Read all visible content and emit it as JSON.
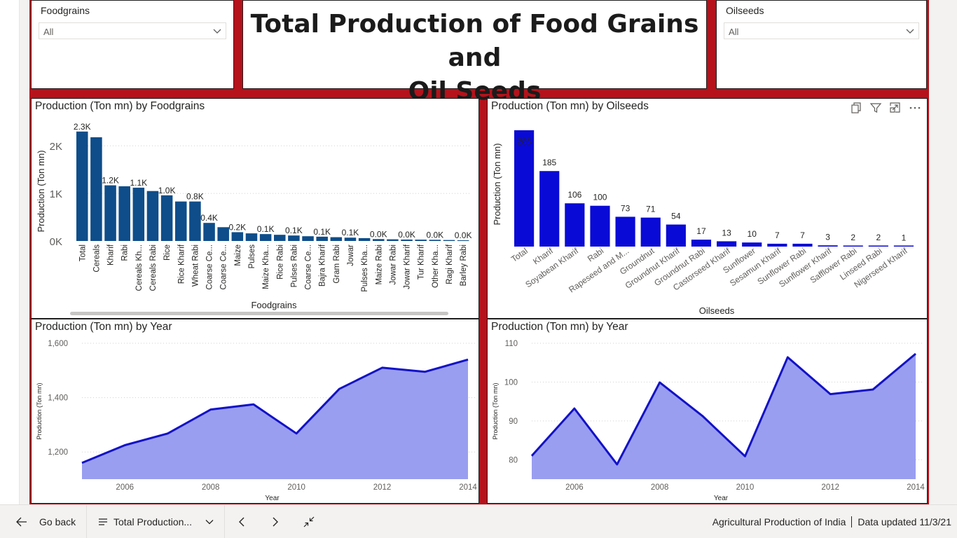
{
  "slicers": {
    "left": {
      "title": "Foodgrains",
      "value": "All"
    },
    "right": {
      "title": "Oilseeds",
      "value": "All"
    }
  },
  "report_title": {
    "line1": "Total Production of Food Grains and",
    "line2": "Oil Seeds"
  },
  "colors": {
    "foodgrains_bar": "#0e4d8a",
    "oilseeds_bar": "#0a0ad6",
    "line_stroke": "#1212c8",
    "area_fill": "#9a9ef0",
    "canvas_bg": "#b5121b",
    "gridline": "#d0d0d0"
  },
  "icons": {
    "copy": "copy-icon",
    "filter": "filter-icon",
    "focus": "focus-mode-icon",
    "more": "more-options-icon",
    "back": "back-arrow-icon",
    "pages": "page-list-icon",
    "prev": "chevron-left-icon",
    "next": "chevron-right-icon",
    "collapse": "collapse-icon"
  },
  "footer": {
    "back_label": "Go back",
    "page_label": "Total Production...",
    "report_name": "Agricultural Production of India",
    "updated": "Data updated 11/3/21"
  },
  "chart_data": [
    {
      "id": "foodgrains_bar",
      "type": "bar",
      "title": "Production (Ton mn) by Foodgrains",
      "xlabel": "Foodgrains",
      "ylabel": "Production (Ton mn)",
      "ylim": [
        0,
        2400
      ],
      "yticks": [
        0,
        1000,
        2000
      ],
      "ytick_labels": [
        "0K",
        "1K",
        "2K"
      ],
      "grid": true,
      "categories": [
        "Total",
        "Cereals",
        "Kharif",
        "Rabi",
        "Cereals Kh...",
        "Cereals Rabi",
        "Rice",
        "Rice Kharif",
        "Wheat Rabi",
        "Coarse Ce...",
        "Coarse Ce...",
        "Maize",
        "Pulses",
        "Maize Kha...",
        "Rice Rabi",
        "Pulses Rabi",
        "Coarse Ce...",
        "Bajra Kharif",
        "Gram Rabi",
        "Jowar",
        "Pulses Kha...",
        "Maize Rabi",
        "Jowar Rabi",
        "Jowar Kharif",
        "Tur Kharif",
        "Other Kha...",
        "Ragi Kharif",
        "Barley Rabi"
      ],
      "values": [
        2300,
        2180,
        1170,
        1150,
        1120,
        1050,
        960,
        830,
        830,
        380,
        290,
        185,
        160,
        145,
        130,
        115,
        100,
        90,
        80,
        70,
        60,
        40,
        35,
        30,
        28,
        25,
        20,
        15
      ],
      "labels": [
        "2.3K",
        "",
        "1.2K",
        "",
        "1.1K",
        "",
        "1.0K",
        "",
        "0.8K",
        "0.4K",
        "",
        "0.2K",
        "",
        "0.1K",
        "",
        "0.1K",
        "",
        "0.1K",
        "",
        "0.1K",
        "",
        "0.0K",
        "",
        "0.0K",
        "",
        "0.0K",
        "",
        "0.0K"
      ]
    },
    {
      "id": "oilseeds_bar",
      "type": "bar",
      "title": "Production (Ton mn) by Oilseeds",
      "xlabel": "Oilseeds",
      "ylabel": "Production (Ton mn)",
      "ylim": [
        0,
        290
      ],
      "grid": false,
      "categories": [
        "Total",
        "Kharif",
        "Soyabean Kharif",
        "Rabi",
        "Rapeseed and M...",
        "Groundnut",
        "Groundnut Kharif",
        "Groundnut Rabi",
        "Castorseed Kharif",
        "Sunflower",
        "Sesamun Kharif",
        "Sunflower Rabi",
        "Sunflower Kharif",
        "Safflower Rabi",
        "Linseed Rabi",
        "Nigerseed Kharif"
      ],
      "values": [
        285,
        185,
        106,
        100,
        73,
        71,
        54,
        17,
        13,
        10,
        7,
        7,
        3,
        2,
        2,
        1
      ],
      "labels": [
        "285",
        "185",
        "106",
        "100",
        "73",
        "71",
        "54",
        "17",
        "13",
        "10",
        "7",
        "7",
        "3",
        "2",
        "2",
        "1"
      ]
    },
    {
      "id": "foodgrains_year",
      "type": "area",
      "title": "Production (Ton mn) by Year",
      "xlabel": "Year",
      "ylabel": "Production (Ton mn)",
      "x": [
        2005,
        2006,
        2007,
        2008,
        2009,
        2010,
        2011,
        2012,
        2013,
        2014
      ],
      "values": [
        1160,
        1225,
        1268,
        1356,
        1375,
        1268,
        1432,
        1510,
        1495,
        1540
      ],
      "ylim": [
        1100,
        1600
      ],
      "yticks": [
        1200,
        1400,
        1600
      ],
      "ytick_labels": [
        "1,200",
        "1,400",
        "1,600"
      ],
      "xticks": [
        2006,
        2008,
        2010,
        2012,
        2014
      ],
      "xtick_labels": [
        "2006",
        "2008",
        "2010",
        "2012",
        "2014"
      ],
      "grid": true
    },
    {
      "id": "oilseeds_year",
      "type": "area",
      "title": "Production (Ton mn) by Year",
      "xlabel": "Year",
      "ylabel": "Production (Ton mn)",
      "x": [
        2005,
        2006,
        2007,
        2008,
        2009,
        2010,
        2011,
        2012,
        2013,
        2014
      ],
      "values": [
        81,
        93.2,
        78.8,
        99.9,
        91.3,
        80.9,
        106.4,
        96.9,
        98.1,
        107.3
      ],
      "ylim": [
        75,
        110
      ],
      "yticks": [
        80,
        90,
        100,
        110
      ],
      "ytick_labels": [
        "80",
        "90",
        "100",
        "110"
      ],
      "xticks": [
        2006,
        2008,
        2010,
        2012,
        2014
      ],
      "xtick_labels": [
        "2006",
        "2008",
        "2010",
        "2012",
        "2014"
      ],
      "grid": true
    }
  ]
}
